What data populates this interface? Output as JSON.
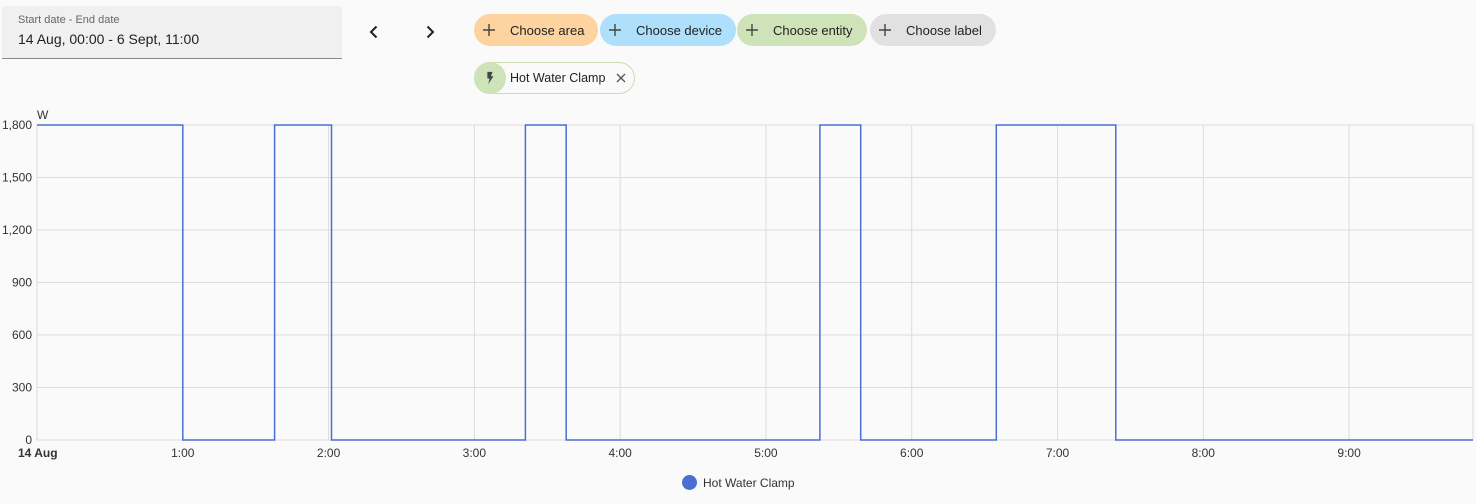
{
  "date_range": {
    "label": "Start date - End date",
    "value": "14 Aug, 00:00 - 6 Sept, 11:00"
  },
  "nav": {
    "prev_icon": "chevron-left-icon",
    "next_icon": "chevron-right-icon"
  },
  "filters": [
    {
      "label": "Choose area",
      "color": "#fdd3a0"
    },
    {
      "label": "Choose device",
      "color": "#aee0fb"
    },
    {
      "label": "Choose entity",
      "color": "#cfe3b8"
    },
    {
      "label": "Choose label",
      "color": "#e1e1e1"
    }
  ],
  "selected_entity": {
    "label": "Hot Water Clamp",
    "icon": "flash-icon",
    "color": "#cfe3b8"
  },
  "chart_data": {
    "type": "line",
    "step": true,
    "ylabel": "W",
    "ylim": [
      0,
      1800
    ],
    "yticks": [
      0,
      300,
      600,
      900,
      1200,
      1500,
      1800
    ],
    "ytick_labels": [
      "0",
      "300",
      "600",
      "900",
      "1,200",
      "1,500",
      "1,800"
    ],
    "xlim": [
      0,
      9.85
    ],
    "xticks": [
      0,
      1,
      2,
      3,
      4,
      5,
      6,
      7,
      8,
      9
    ],
    "xtick_labels": [
      "14 Aug",
      "1:00",
      "2:00",
      "3:00",
      "4:00",
      "5:00",
      "6:00",
      "7:00",
      "8:00",
      "9:00"
    ],
    "grid": true,
    "legend_position": "bottom",
    "series": [
      {
        "name": "Hot Water Clamp",
        "color": "#4a6fd4",
        "points": [
          [
            0,
            1800
          ],
          [
            1.0,
            1800
          ],
          [
            1.0,
            0
          ],
          [
            1.63,
            0
          ],
          [
            1.63,
            1800
          ],
          [
            2.02,
            1800
          ],
          [
            2.02,
            0
          ],
          [
            3.35,
            0
          ],
          [
            3.35,
            1800
          ],
          [
            3.63,
            1800
          ],
          [
            3.63,
            0
          ],
          [
            5.37,
            0
          ],
          [
            5.37,
            1800
          ],
          [
            5.65,
            1800
          ],
          [
            5.65,
            0
          ],
          [
            6.58,
            0
          ],
          [
            6.58,
            1800
          ],
          [
            7.4,
            1800
          ],
          [
            7.4,
            0
          ],
          [
            9.85,
            0
          ]
        ]
      }
    ]
  }
}
